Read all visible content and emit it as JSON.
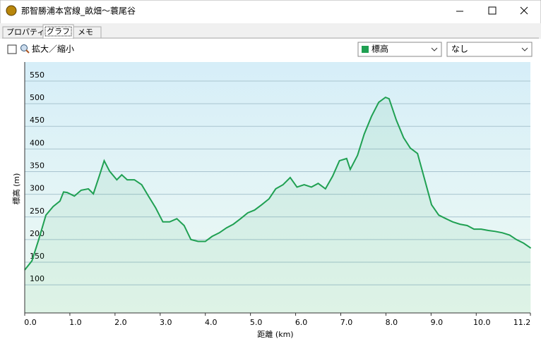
{
  "window": {
    "title": "那智勝浦本宮線_畝畑～蓑尾谷",
    "tabs": [
      "プロパティ",
      "グラフ",
      "メモ"
    ],
    "zoom_label": "拡大／縮小",
    "second_select": "なし"
  },
  "chart_data": {
    "type": "line",
    "x_label": "距離 (km)",
    "y_label": "標高 (m)",
    "x": [
      0,
      0.16,
      0.31,
      0.47,
      0.63,
      0.78,
      0.86,
      0.94,
      1.1,
      1.25,
      1.41,
      1.52,
      1.65,
      1.76,
      1.88,
      2.04,
      2.15,
      2.27,
      2.43,
      2.59,
      2.74,
      2.9,
      3.06,
      3.21,
      3.37,
      3.53,
      3.68,
      3.84,
      4.0,
      4.15,
      4.31,
      4.47,
      4.62,
      4.78,
      4.94,
      5.09,
      5.25,
      5.41,
      5.56,
      5.72,
      5.88,
      6.03,
      6.19,
      6.35,
      6.5,
      6.66,
      6.82,
      6.97,
      7.13,
      7.21,
      7.37,
      7.52,
      7.68,
      7.84,
      7.99,
      8.07,
      8.23,
      8.39,
      8.54,
      8.7,
      8.86,
      9.01,
      9.17,
      9.33,
      9.48,
      9.64,
      9.8,
      9.95,
      10.11,
      10.27,
      10.42,
      10.58,
      10.74,
      10.89,
      11.05,
      11.21
    ],
    "series": [
      {
        "name": "標高",
        "color": "#1fa052",
        "values": [
          133,
          153,
          200,
          254,
          273,
          285,
          305,
          304,
          296,
          309,
          312,
          301,
          340,
          374,
          351,
          332,
          343,
          332,
          332,
          321,
          296,
          270,
          239,
          239,
          246,
          231,
          200,
          196,
          196,
          207,
          215,
          226,
          234,
          246,
          259,
          265,
          277,
          290,
          312,
          321,
          337,
          316,
          321,
          316,
          324,
          312,
          340,
          374,
          379,
          355,
          386,
          433,
          472,
          503,
          514,
          511,
          464,
          425,
          402,
          390,
          332,
          277,
          254,
          246,
          239,
          234,
          231,
          223,
          223,
          220,
          218,
          215,
          210,
          200,
          192,
          181
        ]
      }
    ],
    "xlim": [
      0,
      11.2
    ],
    "ylim": [
      38,
      592
    ],
    "xticks": [
      {
        "value": 0,
        "label": "0.0"
      },
      {
        "value": 1,
        "label": "1.0"
      },
      {
        "value": 2,
        "label": "2.0"
      },
      {
        "value": 3,
        "label": "3.0"
      },
      {
        "value": 4,
        "label": "4.0"
      },
      {
        "value": 5,
        "label": "5.0"
      },
      {
        "value": 6,
        "label": "6.0"
      },
      {
        "value": 7,
        "label": "7.0"
      },
      {
        "value": 8,
        "label": "8.0"
      },
      {
        "value": 9,
        "label": "9.0"
      },
      {
        "value": 10,
        "label": "10.0"
      },
      11.2
    ],
    "yticks": [
      100,
      150,
      200,
      250,
      300,
      350,
      400,
      450,
      500,
      550
    ],
    "grid": true
  }
}
